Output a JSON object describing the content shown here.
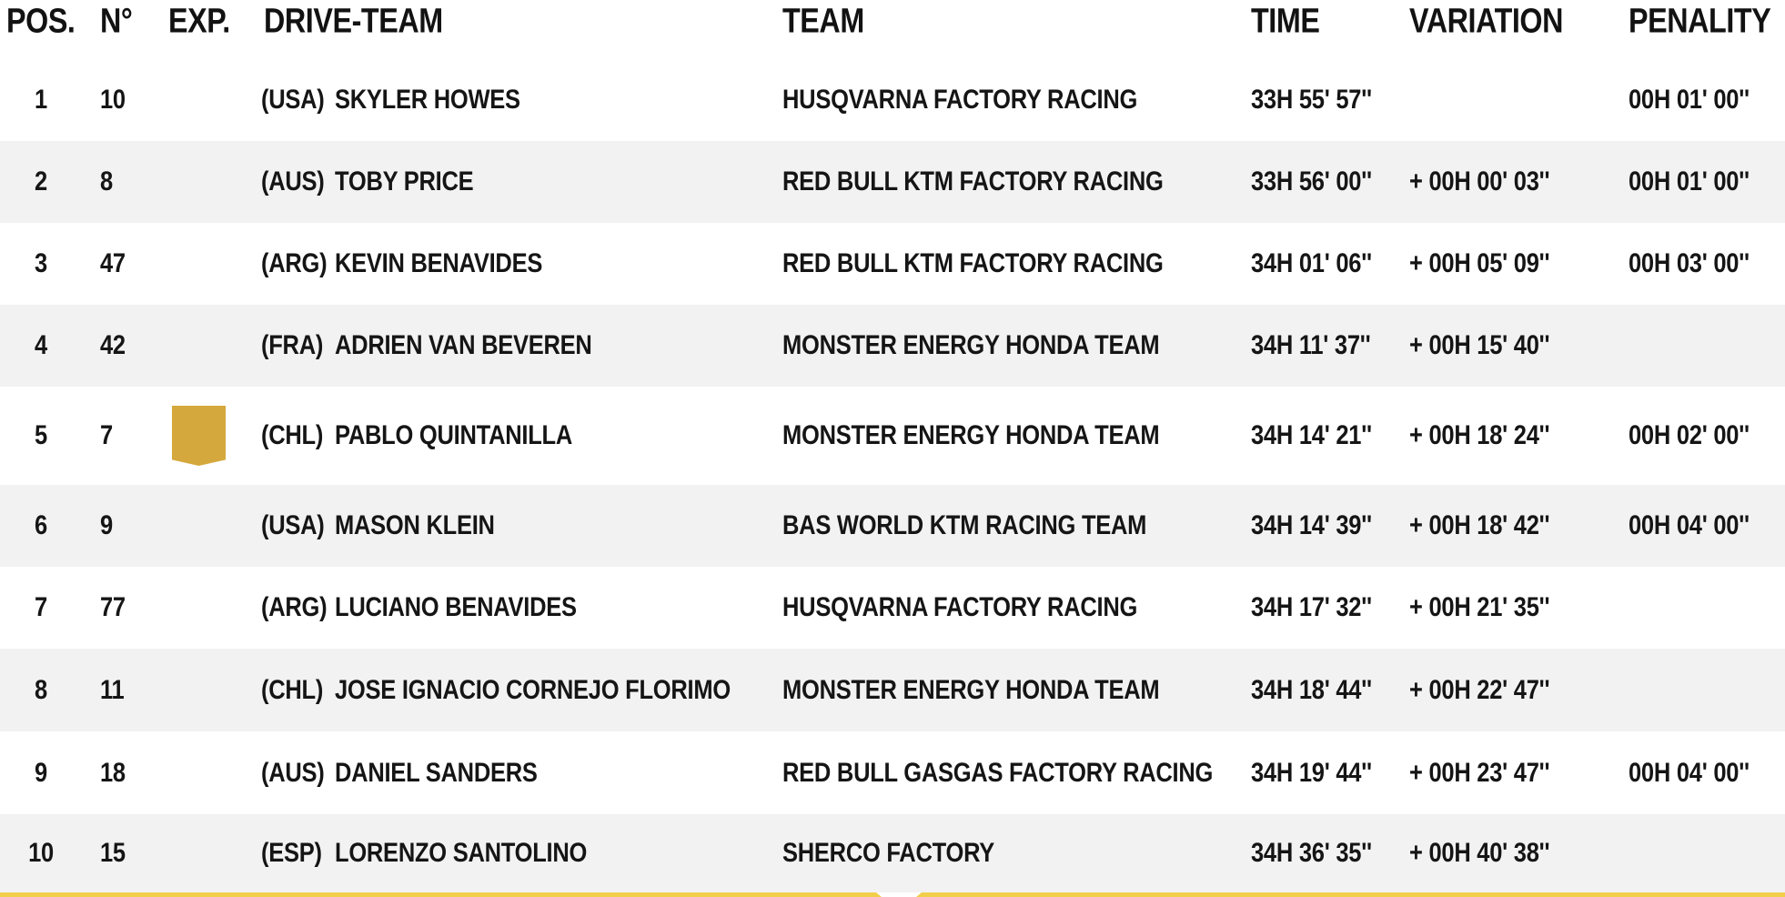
{
  "table": {
    "columns": [
      "POS.",
      "N°",
      "EXP.",
      "DRIVE-TEAM",
      "TEAM",
      "TIME",
      "VARIATION",
      "PENALITY"
    ]
  },
  "rows": [
    {
      "pos": "1",
      "number": "10",
      "country": "(USA)",
      "driver": "SKYLER HOWES",
      "team": "HUSQVARNA FACTORY RACING",
      "time": "33H 55' 57''",
      "variation": "",
      "penalty": "00H 01' 00''"
    },
    {
      "pos": "2",
      "number": "8",
      "country": "(AUS)",
      "driver": "TOBY PRICE",
      "team": "RED BULL KTM FACTORY RACING",
      "time": "33H 56' 00''",
      "variation": "+ 00H 00' 03''",
      "penalty": "00H 01' 00''"
    },
    {
      "pos": "3",
      "number": "47",
      "country": "(ARG)",
      "driver": "KEVIN BENAVIDES",
      "team": "RED BULL KTM FACTORY RACING",
      "time": "34H 01' 06''",
      "variation": "+ 00H 05' 09''",
      "penalty": "00H 03' 00''"
    },
    {
      "pos": "4",
      "number": "42",
      "country": "(FRA)",
      "driver": "ADRIEN VAN BEVEREN",
      "team": "MONSTER ENERGY HONDA TEAM",
      "time": "34H 11' 37''",
      "variation": "+ 00H 15' 40''",
      "penalty": ""
    },
    {
      "pos": "5",
      "number": "7",
      "country": "(CHL)",
      "driver": "PABLO QUINTANILLA",
      "team": "MONSTER ENERGY HONDA TEAM",
      "time": "34H 14' 21''",
      "variation": "+ 00H 18' 24''",
      "penalty": "00H 02' 00''",
      "exp_badge": "gold-pennant"
    },
    {
      "pos": "6",
      "number": "9",
      "country": "(USA)",
      "driver": "MASON KLEIN",
      "team": "BAS WORLD KTM RACING TEAM",
      "time": "34H 14' 39''",
      "variation": "+ 00H 18' 42''",
      "penalty": "00H 04' 00''"
    },
    {
      "pos": "7",
      "number": "77",
      "country": "(ARG)",
      "driver": "LUCIANO BENAVIDES",
      "team": "HUSQVARNA FACTORY RACING",
      "time": "34H 17' 32''",
      "variation": "+ 00H 21' 35''",
      "penalty": ""
    },
    {
      "pos": "8",
      "number": "11",
      "country": "(CHL)",
      "driver": "JOSE IGNACIO CORNEJO FLORIMO",
      "team": "MONSTER ENERGY HONDA TEAM",
      "time": "34H 18' 44''",
      "variation": "+ 00H 22' 47''",
      "penalty": ""
    },
    {
      "pos": "9",
      "number": "18",
      "country": "(AUS)",
      "driver": "DANIEL SANDERS",
      "team": "RED BULL GASGAS FACTORY RACING",
      "time": "34H 19' 44''",
      "variation": "+ 00H 23' 47''",
      "penalty": "00H 04' 00''"
    },
    {
      "pos": "10",
      "number": "15",
      "country": "(ESP)",
      "driver": "LORENZO SANTOLINO",
      "team": "SHERCO FACTORY",
      "time": "34H 36' 35''",
      "variation": "+ 00H 40' 38''",
      "penalty": ""
    }
  ],
  "icons": {
    "exp_badge": "gold-pennant-jersey-badge"
  },
  "colors": {
    "row_alt_background": "#f2f2f2",
    "text": "#151515",
    "badge_gold": "#d5a83d",
    "bottom_bar_yellow": "#f2cf4a"
  }
}
